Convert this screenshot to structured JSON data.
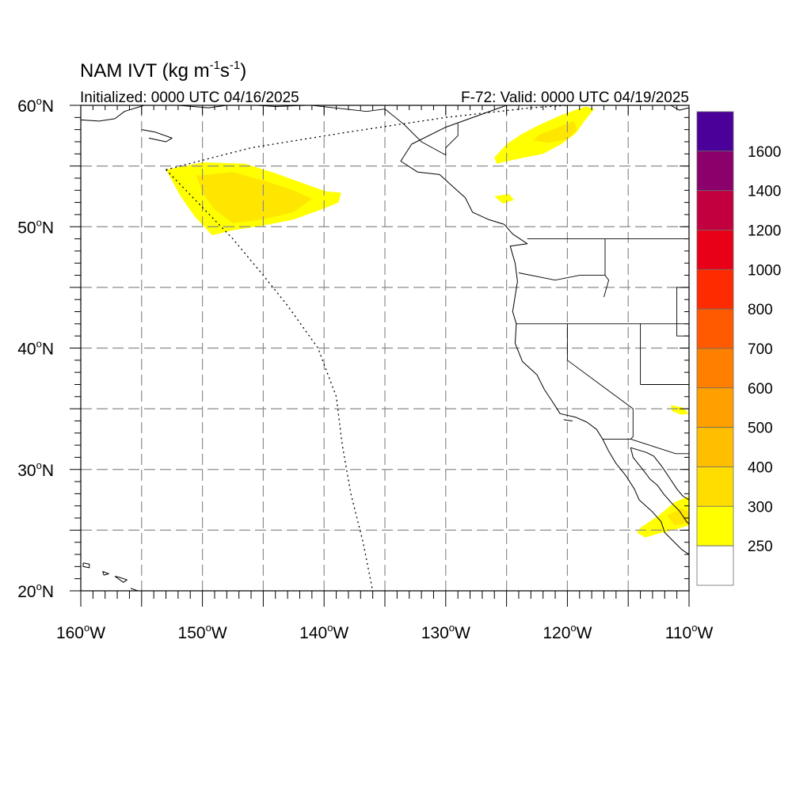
{
  "title": {
    "main": "NAM IVT (kg m",
    "sup1": "-1",
    "mid": "s",
    "sup2": "-1",
    "end": ")"
  },
  "initialized": "Initialized: 0000 UTC 04/16/2025",
  "valid": "F-72: Valid: 0000 UTC 04/19/2025",
  "map": {
    "lon_range": [
      -160,
      -110
    ],
    "lat_range": [
      20,
      60
    ],
    "grid_spacing_deg": 5,
    "grid_style": "dashed",
    "lon_ticks": [
      {
        "value": -160,
        "label": "160",
        "hemi": "W"
      },
      {
        "value": -150,
        "label": "150",
        "hemi": "W"
      },
      {
        "value": -140,
        "label": "140",
        "hemi": "W"
      },
      {
        "value": -130,
        "label": "130",
        "hemi": "W"
      },
      {
        "value": -120,
        "label": "120",
        "hemi": "W"
      },
      {
        "value": -110,
        "label": "110",
        "hemi": "W"
      }
    ],
    "lat_ticks": [
      {
        "value": 60,
        "label": "60",
        "hemi": "N"
      },
      {
        "value": 50,
        "label": "50",
        "hemi": "N"
      },
      {
        "value": 40,
        "label": "40",
        "hemi": "N"
      },
      {
        "value": 30,
        "label": "30",
        "hemi": "N"
      },
      {
        "value": 20,
        "label": "20",
        "hemi": "N"
      }
    ],
    "ivt_regions": [
      {
        "name": "gulf-of-alaska-plume",
        "outer_color": "#ffff00",
        "outer": [
          [
            -153.0,
            54.7
          ],
          [
            -150.0,
            55.3
          ],
          [
            -146.5,
            55.2
          ],
          [
            -144.0,
            54.4
          ],
          [
            -141.5,
            53.5
          ],
          [
            -139.8,
            52.9
          ],
          [
            -138.6,
            52.8
          ],
          [
            -138.8,
            52.0
          ],
          [
            -140.0,
            51.5
          ],
          [
            -142.5,
            50.6
          ],
          [
            -145.0,
            50.1
          ],
          [
            -147.5,
            49.7
          ],
          [
            -149.2,
            49.3
          ],
          [
            -150.6,
            50.8
          ],
          [
            -151.8,
            52.5
          ]
        ],
        "inner_color": "#ffe600",
        "inner": [
          [
            -150.5,
            54.2
          ],
          [
            -147.5,
            54.5
          ],
          [
            -145.0,
            53.8
          ],
          [
            -142.5,
            53.0
          ],
          [
            -141.0,
            52.3
          ],
          [
            -142.5,
            51.2
          ],
          [
            -145.0,
            50.6
          ],
          [
            -147.5,
            50.3
          ],
          [
            -149.0,
            51.4
          ],
          [
            -150.0,
            52.8
          ]
        ]
      },
      {
        "name": "canada-plume",
        "outer_color": "#ffff00",
        "outer": [
          [
            -122.5,
            58.3
          ],
          [
            -120.5,
            59.2
          ],
          [
            -118.5,
            59.9
          ],
          [
            -117.8,
            59.7
          ],
          [
            -118.6,
            58.7
          ],
          [
            -119.3,
            57.7
          ],
          [
            -120.5,
            56.8
          ],
          [
            -122.0,
            56.0
          ],
          [
            -124.0,
            55.6
          ],
          [
            -125.8,
            55.2
          ],
          [
            -126.0,
            55.7
          ],
          [
            -125.0,
            56.8
          ],
          [
            -123.8,
            57.6
          ]
        ],
        "inner_color": "#ffe600",
        "inner": [
          [
            -121.2,
            58.0
          ],
          [
            -119.5,
            58.7
          ],
          [
            -119.2,
            58.0
          ],
          [
            -120.0,
            57.2
          ],
          [
            -121.5,
            56.9
          ],
          [
            -122.8,
            57.1
          ],
          [
            -122.3,
            57.6
          ]
        ]
      },
      {
        "name": "canada-small-patch",
        "outer_color": "#ffff00",
        "outer": [
          [
            -126.0,
            52.5
          ],
          [
            -124.8,
            52.7
          ],
          [
            -124.4,
            52.2
          ],
          [
            -125.3,
            51.9
          ]
        ]
      },
      {
        "name": "mexico-plume",
        "outer_color": "#ffff00",
        "outer": [
          [
            -114.0,
            25.2
          ],
          [
            -112.5,
            26.2
          ],
          [
            -111.2,
            27.3
          ],
          [
            -110.0,
            27.8
          ],
          [
            -110.0,
            25.4
          ],
          [
            -111.3,
            25.0
          ],
          [
            -112.6,
            24.7
          ],
          [
            -113.6,
            24.4
          ],
          [
            -114.3,
            24.8
          ]
        ],
        "inner_color": "#ffe600",
        "inner": [
          [
            -111.8,
            26.2
          ],
          [
            -110.6,
            26.8
          ],
          [
            -110.0,
            26.5
          ],
          [
            -110.0,
            25.6
          ],
          [
            -111.2,
            25.4
          ]
        ]
      },
      {
        "name": "mexico-small-patch",
        "outer_color": "#ffff00",
        "outer": [
          [
            -111.5,
            35.3
          ],
          [
            -110.5,
            35.1
          ],
          [
            -110.0,
            34.6
          ],
          [
            -110.6,
            34.5
          ],
          [
            -111.4,
            34.8
          ]
        ]
      }
    ],
    "coastlines": [
      [
        [
          -125.0,
          60.0
        ],
        [
          -130.0,
          58.2
        ],
        [
          -132.8,
          56.8
        ],
        [
          -133.7,
          55.4
        ],
        [
          -132.3,
          54.5
        ],
        [
          -130.5,
          54.3
        ],
        [
          -129.3,
          53.2
        ],
        [
          -128.4,
          52.4
        ],
        [
          -127.8,
          51.2
        ],
        [
          -126.5,
          50.6
        ],
        [
          -125.2,
          50.2
        ],
        [
          -124.5,
          49.4
        ],
        [
          -123.3,
          48.6
        ],
        [
          -124.7,
          48.4
        ],
        [
          -124.3,
          47.0
        ],
        [
          -124.1,
          45.5
        ],
        [
          -124.5,
          43.0
        ],
        [
          -124.2,
          42.0
        ],
        [
          -124.3,
          40.4
        ],
        [
          -123.7,
          38.9
        ],
        [
          -122.5,
          37.8
        ],
        [
          -121.9,
          36.6
        ],
        [
          -121.3,
          35.7
        ],
        [
          -120.6,
          34.6
        ],
        [
          -119.3,
          34.3
        ],
        [
          -118.4,
          33.9
        ],
        [
          -117.6,
          33.3
        ],
        [
          -117.1,
          32.5
        ],
        [
          -116.6,
          31.5
        ],
        [
          -116.0,
          30.5
        ],
        [
          -115.2,
          29.5
        ],
        [
          -114.5,
          28.4
        ],
        [
          -114.1,
          27.5
        ],
        [
          -113.0,
          26.5
        ],
        [
          -112.3,
          25.7
        ],
        [
          -112.0,
          24.8
        ],
        [
          -111.5,
          24.3
        ],
        [
          -110.6,
          23.4
        ],
        [
          -110.0,
          23.0
        ]
      ],
      [
        [
          -114.8,
          31.8
        ],
        [
          -114.6,
          31.0
        ],
        [
          -113.8,
          30.0
        ],
        [
          -113.2,
          29.2
        ],
        [
          -112.6,
          28.7
        ],
        [
          -112.1,
          28.0
        ],
        [
          -111.4,
          27.2
        ],
        [
          -110.8,
          26.6
        ],
        [
          -110.2,
          25.7
        ],
        [
          -110.0,
          25.5
        ]
      ],
      [
        [
          -114.8,
          31.8
        ],
        [
          -113.5,
          31.4
        ],
        [
          -112.9,
          31.1
        ],
        [
          -112.2,
          30.2
        ],
        [
          -111.6,
          29.3
        ],
        [
          -111.0,
          28.4
        ],
        [
          -110.5,
          27.8
        ],
        [
          -110.0,
          27.5
        ]
      ],
      [
        [
          -160.0,
          58.8
        ],
        [
          -158.5,
          58.7
        ],
        [
          -157.2,
          58.9
        ],
        [
          -156.4,
          59.5
        ],
        [
          -154.8,
          60.0
        ]
      ],
      [
        [
          -155.0,
          58.0
        ],
        [
          -153.9,
          57.8
        ],
        [
          -152.5,
          57.3
        ],
        [
          -153.0,
          57.0
        ],
        [
          -154.4,
          57.3
        ]
      ],
      [
        [
          -152.0,
          60.0
        ],
        [
          -149.5,
          59.8
        ],
        [
          -148.0,
          60.0
        ]
      ],
      [
        [
          -145.5,
          60.0
        ],
        [
          -144.0,
          59.9
        ],
        [
          -141.5,
          60.0
        ]
      ],
      [
        [
          -111.5,
          60.0
        ],
        [
          -110.8,
          59.6
        ],
        [
          -110.0,
          59.8
        ]
      ],
      [
        [
          -159.8,
          22.3
        ],
        [
          -159.3,
          22.2
        ],
        [
          -159.3,
          21.9
        ],
        [
          -159.8,
          22.0
        ],
        [
          -159.8,
          22.3
        ]
      ],
      [
        [
          -158.2,
          21.6
        ],
        [
          -157.7,
          21.4
        ],
        [
          -158.1,
          21.3
        ],
        [
          -158.2,
          21.6
        ]
      ],
      [
        [
          -157.2,
          21.2
        ],
        [
          -156.8,
          21.1
        ],
        [
          -156.2,
          20.9
        ],
        [
          -156.5,
          20.7
        ],
        [
          -157.2,
          21.2
        ]
      ],
      [
        [
          -155.9,
          20.2
        ],
        [
          -155.0,
          19.9
        ],
        [
          -155.9,
          20.2
        ]
      ],
      [
        [
          -120.3,
          34.1
        ],
        [
          -119.6,
          34.0
        ],
        [
          -120.3,
          34.1
        ]
      ]
    ],
    "borders": [
      [
        [
          -141.0,
          60.0
        ],
        [
          -136.5,
          59.5
        ],
        [
          -135.0,
          59.7
        ],
        [
          -133.4,
          58.4
        ],
        [
          -132.0,
          57.0
        ],
        [
          -130.0,
          55.9
        ],
        [
          -130.0,
          56.5
        ],
        [
          -129.0,
          57.5
        ],
        [
          -129.0,
          58.5
        ]
      ],
      [
        [
          -123.3,
          49.0
        ],
        [
          -110.0,
          49.0
        ]
      ],
      [
        [
          -124.0,
          46.2
        ],
        [
          -121.0,
          45.6
        ],
        [
          -119.0,
          46.0
        ],
        [
          -116.9,
          46.0
        ],
        [
          -116.9,
          49.0
        ]
      ],
      [
        [
          -124.2,
          42.0
        ],
        [
          -110.0,
          42.0
        ]
      ],
      [
        [
          -120.0,
          42.0
        ],
        [
          -120.0,
          39.0
        ],
        [
          -114.6,
          35.0
        ],
        [
          -114.6,
          32.7
        ],
        [
          -114.8,
          32.5
        ],
        [
          -117.1,
          32.5
        ]
      ],
      [
        [
          -114.8,
          32.5
        ],
        [
          -111.1,
          31.3
        ],
        [
          -110.0,
          31.3
        ]
      ],
      [
        [
          -117.0,
          44.2
        ],
        [
          -116.6,
          45.6
        ],
        [
          -116.9,
          46.0
        ]
      ],
      [
        [
          -114.0,
          37.0
        ],
        [
          -110.0,
          37.0
        ]
      ],
      [
        [
          -114.0,
          42.0
        ],
        [
          -114.0,
          37.0
        ]
      ],
      [
        [
          -111.0,
          42.0
        ],
        [
          -111.0,
          45.0
        ],
        [
          -110.0,
          45.0
        ]
      ],
      [
        [
          -111.0,
          42.0
        ],
        [
          -111.0,
          41.0
        ],
        [
          -110.0,
          41.0
        ]
      ]
    ],
    "dateline_like_path": [
      [
        -153.0,
        54.7
      ],
      [
        -147.5,
        49.0
      ],
      [
        -145.0,
        46.0
      ],
      [
        -143.0,
        43.5
      ],
      [
        -140.5,
        40.0
      ],
      [
        -139.0,
        36.0
      ],
      [
        -138.5,
        32.0
      ],
      [
        -137.8,
        28.0
      ],
      [
        -136.8,
        24.0
      ],
      [
        -136.0,
        20.0
      ]
    ],
    "dateline_north_path": [
      [
        -153.0,
        54.7
      ],
      [
        -146.0,
        56.5
      ],
      [
        -138.0,
        57.8
      ],
      [
        -130.0,
        59.0
      ],
      [
        -123.0,
        59.8
      ],
      [
        -120.0,
        60.0
      ]
    ]
  },
  "colorbar": {
    "labels": [
      "1600",
      "1400",
      "1200",
      "1000",
      "800",
      "700",
      "600",
      "500",
      "400",
      "300",
      "250"
    ],
    "colors": [
      "#4b0099",
      "#8b006b",
      "#c3003f",
      "#e80018",
      "#ff2b00",
      "#ff5a00",
      "#ff7f00",
      "#ffa000",
      "#ffbe00",
      "#ffdd00",
      "#ffff00",
      "#ffffff"
    ]
  }
}
